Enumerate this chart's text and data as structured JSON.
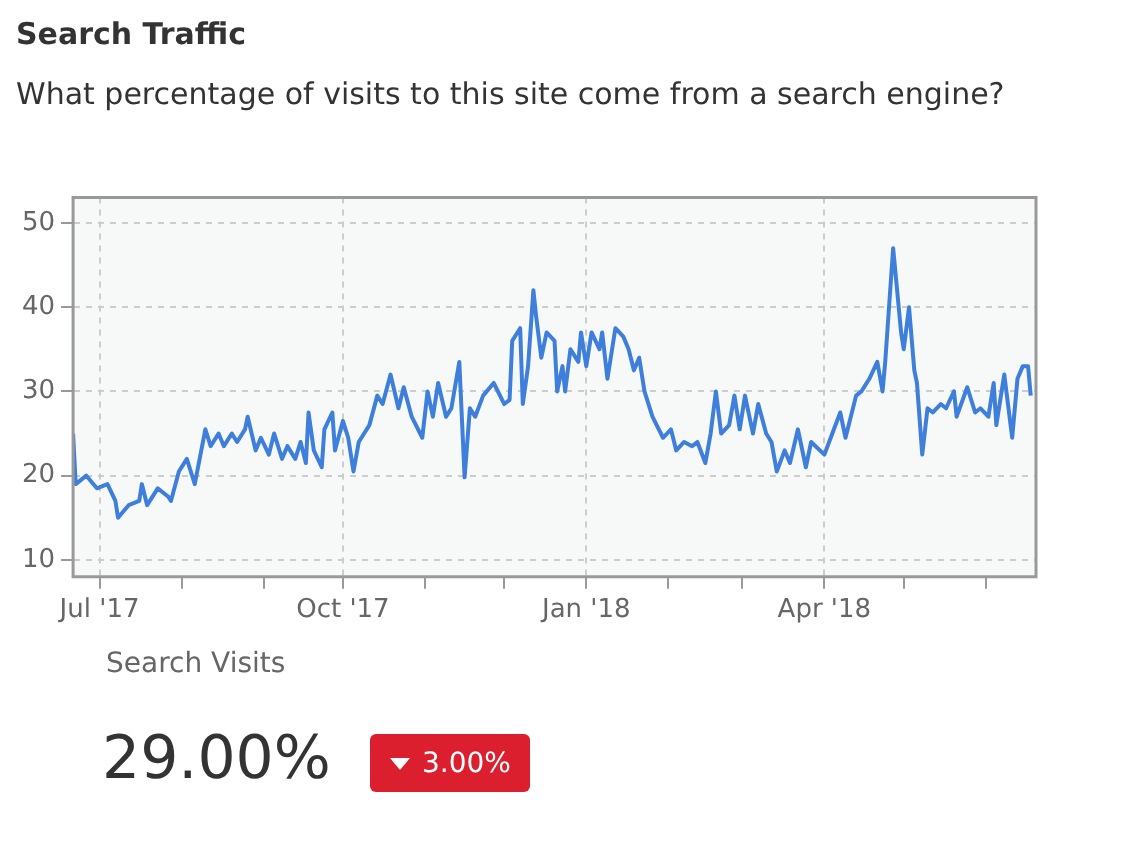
{
  "chart_data": {
    "type": "line",
    "title": "Search Traffic",
    "subtitle": "What percentage of visits to this site come from a search engine?",
    "annotations": [
      "Search Visits",
      "29.00%",
      "3.00%"
    ],
    "x": [
      "2017-06-21",
      "2017-06-22",
      "2017-06-26",
      "2017-06-30",
      "2017-07-04",
      "2017-07-07",
      "2017-07-08",
      "2017-07-12",
      "2017-07-16",
      "2017-07-17",
      "2017-07-19",
      "2017-07-23",
      "2017-07-27",
      "2017-07-28",
      "2017-07-31",
      "2017-08-03",
      "2017-08-06",
      "2017-08-10",
      "2017-08-12",
      "2017-08-15",
      "2017-08-17",
      "2017-08-20",
      "2017-08-22",
      "2017-08-25",
      "2017-08-26",
      "2017-08-29",
      "2017-08-31",
      "2017-09-03",
      "2017-09-05",
      "2017-09-08",
      "2017-09-10",
      "2017-09-13",
      "2017-09-15",
      "2017-09-17",
      "2017-09-18",
      "2017-09-20",
      "2017-09-23",
      "2017-09-24",
      "2017-09-27",
      "2017-09-28",
      "2017-10-01",
      "2017-10-03",
      "2017-10-05",
      "2017-10-07",
      "2017-10-11",
      "2017-10-14",
      "2017-10-16",
      "2017-10-19",
      "2017-10-22",
      "2017-10-24",
      "2017-10-27",
      "2017-10-31",
      "2017-11-02",
      "2017-11-04",
      "2017-11-06",
      "2017-11-09",
      "2017-11-11",
      "2017-11-14",
      "2017-11-16",
      "2017-11-18",
      "2017-11-20",
      "2017-11-23",
      "2017-11-27",
      "2017-12-01",
      "2017-12-03",
      "2017-12-04",
      "2017-12-07",
      "2017-12-08",
      "2017-12-10",
      "2017-12-12",
      "2017-12-13",
      "2017-12-15",
      "2017-12-17",
      "2017-12-20",
      "2017-12-21",
      "2017-12-23",
      "2017-12-24",
      "2017-12-26",
      "2017-12-29",
      "2017-12-30",
      "2018-01-01",
      "2018-01-03",
      "2018-01-06",
      "2018-01-07",
      "2018-01-09",
      "2018-01-12",
      "2018-01-15",
      "2018-01-17",
      "2018-01-19",
      "2018-01-21",
      "2018-01-23",
      "2018-01-26",
      "2018-01-30",
      "2018-02-02",
      "2018-02-04",
      "2018-02-07",
      "2018-02-10",
      "2018-02-12",
      "2018-02-15",
      "2018-02-17",
      "2018-02-19",
      "2018-02-21",
      "2018-02-24",
      "2018-02-26",
      "2018-02-28",
      "2018-03-02",
      "2018-03-05",
      "2018-03-07",
      "2018-03-10",
      "2018-03-12",
      "2018-03-14",
      "2018-03-17",
      "2018-03-19",
      "2018-03-22",
      "2018-03-25",
      "2018-03-27",
      "2018-04-01",
      "2018-04-04",
      "2018-04-07",
      "2018-04-09",
      "2018-04-13",
      "2018-04-15",
      "2018-04-18",
      "2018-04-21",
      "2018-04-23",
      "2018-04-24",
      "2018-04-27",
      "2018-04-30",
      "2018-05-01",
      "2018-05-03",
      "2018-05-05",
      "2018-05-06",
      "2018-05-08",
      "2018-05-10",
      "2018-05-12",
      "2018-05-15",
      "2018-05-17",
      "2018-05-20",
      "2018-05-21",
      "2018-05-25",
      "2018-05-28",
      "2018-05-30",
      "2018-06-02",
      "2018-06-04",
      "2018-06-05",
      "2018-06-08",
      "2018-06-11",
      "2018-06-13",
      "2018-06-15",
      "2018-06-17",
      "2018-06-18"
    ],
    "series": [
      {
        "color": "#3f7fdc",
        "values": [
          25,
          19,
          20,
          18.5,
          19,
          17,
          15,
          16.5,
          17,
          19,
          16.5,
          18.5,
          17.5,
          17,
          20.5,
          22,
          19,
          25.5,
          23.5,
          25,
          23.5,
          25,
          24,
          25.5,
          27,
          23,
          24.5,
          22.5,
          25,
          22,
          23.5,
          22,
          24,
          21.5,
          27.5,
          23,
          21,
          25.5,
          27.5,
          23,
          26.5,
          24.5,
          20.5,
          24,
          26,
          29.5,
          28.5,
          32,
          28,
          30.5,
          27,
          24.5,
          30,
          27,
          31,
          27,
          28,
          33.5,
          19.8,
          28,
          27,
          29.5,
          31,
          28.5,
          29,
          36,
          37.5,
          28.5,
          33,
          42,
          39,
          34,
          37,
          36,
          30,
          33,
          30,
          35,
          33.5,
          37,
          33,
          37,
          35,
          37,
          31.5,
          37.5,
          36.5,
          35,
          32.5,
          34,
          30,
          27,
          24.5,
          25.5,
          23,
          24,
          23.5,
          24,
          21.5,
          25,
          30,
          25,
          26,
          29.5,
          25.5,
          29.5,
          25,
          28.5,
          25,
          24,
          20.5,
          23,
          21.5,
          25.5,
          21,
          24,
          22.5,
          25,
          27.5,
          24.5,
          29.5,
          30,
          31.5,
          33.5,
          30,
          33.5,
          47,
          37,
          35,
          40,
          32.5,
          31,
          22.5,
          28,
          27.5,
          28.5,
          28,
          30,
          27,
          30.5,
          27.5,
          28,
          27,
          31,
          26,
          32,
          24.5,
          31.5,
          33,
          33,
          29.5
        ]
      }
    ],
    "xlim": [
      "2017-06-21",
      "2018-06-20"
    ],
    "xticks": [
      {
        "value": "2017-07-01",
        "label": "Jul '17"
      },
      {
        "value": "2017-08-01",
        "label": null
      },
      {
        "value": "2017-09-01",
        "label": null
      },
      {
        "value": "2017-10-01",
        "label": "Oct '17"
      },
      {
        "value": "2017-11-01",
        "label": null
      },
      {
        "value": "2017-12-01",
        "label": null
      },
      {
        "value": "2018-01-01",
        "label": "Jan '18"
      },
      {
        "value": "2018-02-01",
        "label": null
      },
      {
        "value": "2018-03-01",
        "label": null
      },
      {
        "value": "2018-04-01",
        "label": "Apr '18"
      },
      {
        "value": "2018-05-01",
        "label": null
      },
      {
        "value": "2018-06-01",
        "label": null
      }
    ],
    "ylim": [
      8,
      53
    ],
    "yticks": [
      10,
      20,
      30,
      40,
      50
    ],
    "grid": true,
    "legend": false,
    "marker": "none",
    "line_style": "solid"
  }
}
